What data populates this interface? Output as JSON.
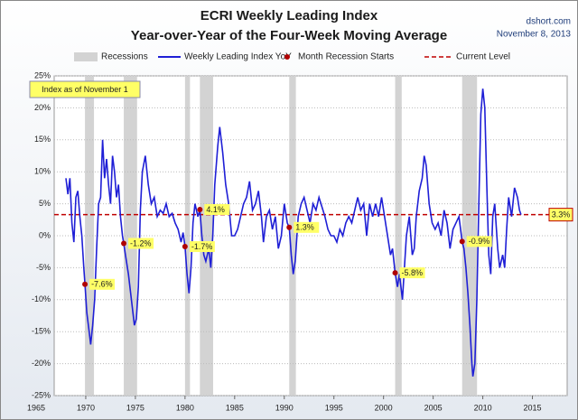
{
  "chart_data": {
    "type": "line",
    "title": "ECRI Weekly Leading Index",
    "subtitle": "Year-over-Year of the Four-Week Moving Average",
    "source": "dshort.com",
    "date": "November 8, 2013",
    "annotation": "Index as of November 1",
    "x": [
      1968.0,
      1968.2,
      1968.4,
      1968.6,
      1968.8,
      1969.0,
      1969.2,
      1969.4,
      1969.6,
      1969.8,
      1969.92,
      1970.1,
      1970.3,
      1970.5,
      1970.7,
      1970.9,
      1971.1,
      1971.3,
      1971.5,
      1971.7,
      1971.9,
      1972.1,
      1972.3,
      1972.5,
      1972.7,
      1972.9,
      1973.1,
      1973.3,
      1973.5,
      1973.7,
      1973.83,
      1974.0,
      1974.3,
      1974.6,
      1974.9,
      1975.1,
      1975.3,
      1975.5,
      1975.7,
      1976.0,
      1976.3,
      1976.6,
      1976.9,
      1977.2,
      1977.5,
      1977.8,
      1978.1,
      1978.4,
      1978.7,
      1979.0,
      1979.3,
      1979.6,
      1979.8,
      1980.0,
      1980.2,
      1980.4,
      1980.6,
      1980.8,
      1981.0,
      1981.3,
      1981.5,
      1981.7,
      1981.9,
      1982.1,
      1982.4,
      1982.6,
      1982.8,
      1983.0,
      1983.3,
      1983.5,
      1983.8,
      1984.1,
      1984.4,
      1984.7,
      1985.0,
      1985.3,
      1985.6,
      1985.9,
      1986.2,
      1986.5,
      1986.8,
      1987.1,
      1987.4,
      1987.7,
      1987.9,
      1988.2,
      1988.5,
      1988.8,
      1989.1,
      1989.4,
      1989.7,
      1990.0,
      1990.3,
      1990.5,
      1990.7,
      1990.9,
      1991.1,
      1991.4,
      1991.7,
      1992.0,
      1992.3,
      1992.6,
      1992.9,
      1993.2,
      1993.5,
      1993.8,
      1994.1,
      1994.4,
      1994.7,
      1995.0,
      1995.3,
      1995.6,
      1995.9,
      1996.2,
      1996.5,
      1996.8,
      1997.1,
      1997.4,
      1997.7,
      1998.0,
      1998.3,
      1998.6,
      1998.9,
      1999.2,
      1999.5,
      1999.8,
      2000.1,
      2000.4,
      2000.7,
      2000.9,
      2001.17,
      2001.4,
      2001.6,
      2001.9,
      2002.1,
      2002.3,
      2002.6,
      2002.9,
      2003.1,
      2003.3,
      2003.6,
      2003.9,
      2004.1,
      2004.3,
      2004.6,
      2004.9,
      2005.2,
      2005.5,
      2005.8,
      2006.1,
      2006.4,
      2006.7,
      2007.0,
      2007.3,
      2007.6,
      2007.92,
      2008.1,
      2008.3,
      2008.5,
      2008.7,
      2008.9,
      2009.0,
      2009.2,
      2009.4,
      2009.6,
      2009.8,
      2010.0,
      2010.2,
      2010.4,
      2010.6,
      2010.8,
      2011.0,
      2011.2,
      2011.5,
      2011.7,
      2012.0,
      2012.2,
      2012.4,
      2012.6,
      2012.9,
      2013.2,
      2013.5,
      2013.7,
      2013.85
    ],
    "series": [
      {
        "name": "Weekly Leading Index YoY",
        "color": "#1f1fd6",
        "values": [
          9,
          6.5,
          9,
          2,
          -1,
          6,
          7,
          3,
          0,
          -5,
          -7.6,
          -12,
          -14.5,
          -17,
          -14,
          -10,
          -2,
          5,
          6,
          15,
          9,
          12,
          8,
          5,
          12.5,
          10,
          6,
          8,
          3,
          0,
          -1.2,
          -3,
          -6,
          -10,
          -14,
          -13,
          -8,
          4,
          10,
          12.5,
          8,
          5,
          6,
          3,
          4,
          3.5,
          5,
          3,
          3.5,
          2,
          1,
          -1,
          0.5,
          -1.7,
          -6,
          -9,
          -5,
          2,
          5,
          3,
          4.1,
          0,
          -3,
          -4,
          -2,
          -5,
          0,
          8,
          14,
          17,
          13,
          8,
          5,
          0,
          0,
          1,
          3,
          5,
          6,
          8.5,
          4,
          5,
          7,
          3,
          -1,
          3,
          4,
          1,
          3,
          -2,
          0,
          5,
          2,
          1.3,
          -3,
          -6,
          -4,
          3,
          5,
          6,
          4,
          2,
          5,
          4,
          6,
          4.5,
          3,
          1,
          0,
          0,
          -1,
          1,
          0,
          2,
          3,
          2,
          4,
          6,
          4,
          5,
          0,
          5,
          3,
          5,
          3,
          6,
          3,
          0,
          -3,
          -2,
          -5.8,
          -8,
          -6,
          -10,
          -5,
          0,
          3,
          -3,
          -2,
          3,
          7,
          9,
          12.5,
          11,
          5,
          2,
          1,
          2,
          0,
          4,
          2,
          -2,
          1,
          2,
          3,
          -0.9,
          -2,
          -5,
          -9,
          -14,
          -20,
          -22,
          -20,
          -10,
          5,
          19,
          23,
          20,
          8,
          -3,
          -6,
          3,
          5,
          -2,
          -5,
          -3,
          -5,
          1,
          6,
          3,
          7.5,
          6,
          4,
          3.3
        ]
      }
    ],
    "recessions": {
      "name": "Recessions",
      "color": "#d3d3d3",
      "spans": [
        [
          1969.92,
          1970.83
        ],
        [
          1973.83,
          1975.17
        ],
        [
          1980.0,
          1980.5
        ],
        [
          1981.5,
          1982.83
        ],
        [
          1990.5,
          1991.17
        ],
        [
          2001.17,
          2001.83
        ],
        [
          2007.92,
          2009.42
        ]
      ]
    },
    "recession_starts": {
      "name": "Month Recession Starts",
      "color": "#b00000",
      "x": [
        1969.92,
        1973.83,
        1980.0,
        1981.5,
        1990.5,
        2001.17,
        2007.92
      ],
      "values": [
        -7.6,
        -1.2,
        -1.7,
        4.1,
        1.3,
        -5.8,
        -0.9
      ],
      "value_labels": [
        "-7.6%",
        "-1.2%",
        "-1.7%",
        "4.1%",
        "1.3%",
        "-5.8%",
        "-0.9%"
      ]
    },
    "current_level": {
      "name": "Current Level",
      "color": "#c00000",
      "value": 3.3,
      "value_label": "3.3%"
    },
    "xlim": [
      1965,
      2018.5
    ],
    "xticks": [
      1965,
      1970,
      1975,
      1980,
      1985,
      1990,
      1995,
      2000,
      2005,
      2010,
      2015
    ],
    "ylim": [
      -25,
      25
    ],
    "yticks": [
      {
        "value": -25,
        "label": "-25%"
      },
      {
        "value": -20,
        "label": "-20%"
      },
      {
        "value": -15,
        "label": "-15%"
      },
      {
        "value": -10,
        "label": "-10%"
      },
      {
        "value": -5,
        "label": "-5%"
      },
      {
        "value": 0,
        "label": "0%"
      },
      {
        "value": 5,
        "label": "5%"
      },
      {
        "value": 10,
        "label": "10%"
      },
      {
        "value": 15,
        "label": "15%"
      },
      {
        "value": 20,
        "label": "20%"
      },
      {
        "value": 25,
        "label": "25%"
      }
    ],
    "grid": true
  }
}
